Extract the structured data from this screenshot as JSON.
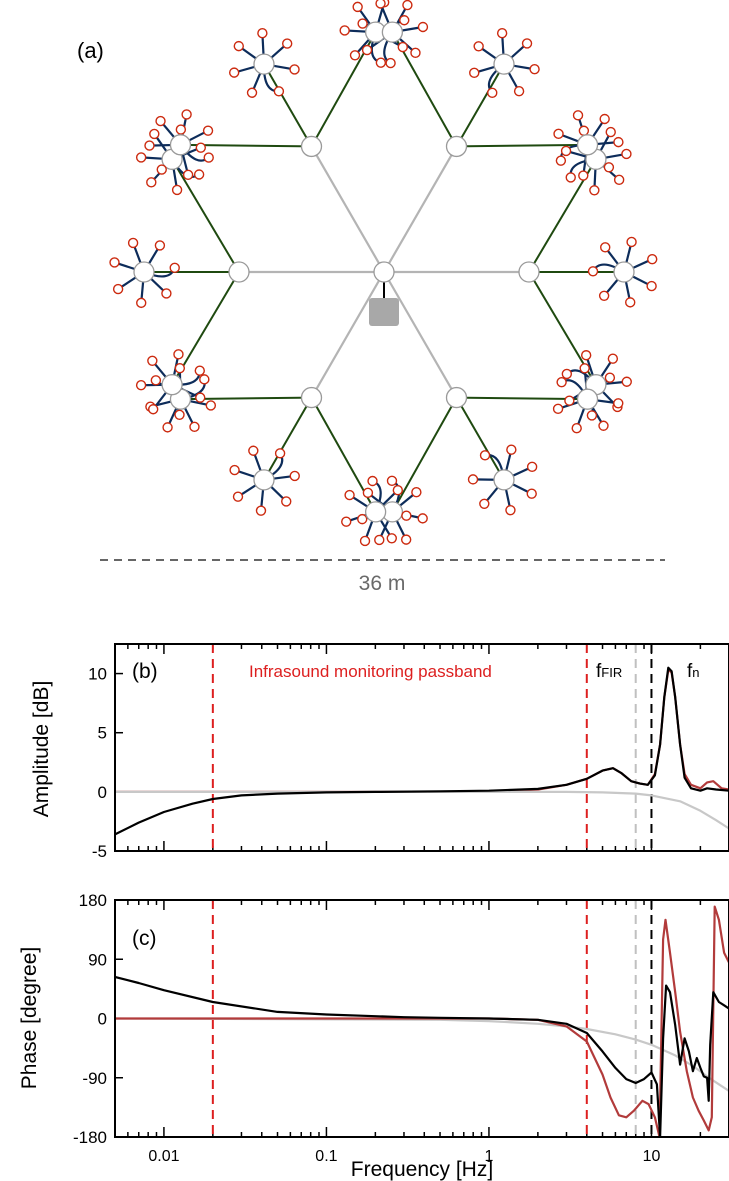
{
  "panel_a": {
    "label": "(a)",
    "scale_label": "36 m",
    "colors": {
      "center_hub": "#ffffff",
      "hub_stroke": "#9a9a9a",
      "main_arms": "#b4b4b4",
      "secondary_links": "#1f4a10",
      "sensor_arms": "#0d2c5a",
      "inlet_ports": "#cc2a0f",
      "digitizer_box": "#a8a8a8"
    }
  },
  "chart_data": [
    {
      "type": "line",
      "panel_label": "(b)",
      "ylabel": "Amplitude [dB]",
      "xscale": "log",
      "xlim": [
        0.005,
        30
      ],
      "ylim": [
        -5,
        12.5
      ],
      "yticks": [
        -5,
        0,
        5,
        10
      ],
      "annotations": {
        "passband_label": "Infrasound monitoring passband",
        "fir_label_main": "f",
        "fir_label_sub": "FIR",
        "nyq_label_main": "f",
        "nyq_label_sub": "n"
      },
      "vlines": [
        {
          "x": 0.02,
          "color": "#dd1f1f",
          "style": "dashed"
        },
        {
          "x": 4,
          "color": "#dd1f1f",
          "style": "dashed"
        },
        {
          "x": 8,
          "color": "#c0c0c0",
          "style": "dashed"
        },
        {
          "x": 10,
          "color": "#000000",
          "style": "dashed"
        }
      ],
      "series": [
        {
          "color": "#b23b3b",
          "points": [
            [
              0.005,
              0
            ],
            [
              0.05,
              0
            ],
            [
              0.5,
              0
            ],
            [
              1,
              0
            ],
            [
              2,
              0.2
            ],
            [
              3,
              0.6
            ],
            [
              4,
              1.1
            ],
            [
              5,
              1.8
            ],
            [
              5.8,
              2.0
            ],
            [
              6.5,
              1.6
            ],
            [
              7.5,
              0.9
            ],
            [
              8.5,
              0.7
            ],
            [
              9.5,
              0.6
            ],
            [
              10.5,
              1.5
            ],
            [
              11.3,
              4
            ],
            [
              12,
              8
            ],
            [
              12.7,
              10.3
            ],
            [
              13.3,
              10.1
            ],
            [
              14,
              8
            ],
            [
              15,
              4
            ],
            [
              16,
              1.5
            ],
            [
              17.5,
              0.6
            ],
            [
              20,
              0.3
            ],
            [
              22,
              0.8
            ],
            [
              24,
              0.9
            ],
            [
              27,
              0.3
            ],
            [
              30,
              0.2
            ]
          ]
        },
        {
          "color": "#c8c8c8",
          "points": [
            [
              0.005,
              0
            ],
            [
              0.5,
              0
            ],
            [
              1,
              0
            ],
            [
              2,
              0
            ],
            [
              3,
              0
            ],
            [
              5,
              -0.05
            ],
            [
              8,
              -0.15
            ],
            [
              10,
              -0.3
            ],
            [
              15,
              -0.8
            ],
            [
              20,
              -1.6
            ],
            [
              25,
              -2.4
            ],
            [
              30,
              -3.1
            ]
          ]
        },
        {
          "color": "#000000",
          "points": [
            [
              0.005,
              -3.6
            ],
            [
              0.007,
              -2.6
            ],
            [
              0.01,
              -1.7
            ],
            [
              0.015,
              -1.0
            ],
            [
              0.02,
              -0.6
            ],
            [
              0.03,
              -0.3
            ],
            [
              0.05,
              -0.15
            ],
            [
              0.1,
              -0.05
            ],
            [
              0.2,
              0
            ],
            [
              0.5,
              0.05
            ],
            [
              1,
              0.1
            ],
            [
              2,
              0.25
            ],
            [
              3,
              0.6
            ],
            [
              4,
              1.1
            ],
            [
              5,
              1.8
            ],
            [
              5.8,
              2.0
            ],
            [
              6.5,
              1.6
            ],
            [
              7.5,
              0.9
            ],
            [
              8.5,
              0.7
            ],
            [
              9.5,
              0.6
            ],
            [
              10.5,
              1.4
            ],
            [
              11.3,
              4
            ],
            [
              12,
              8
            ],
            [
              12.7,
              10.5
            ],
            [
              13.3,
              10.2
            ],
            [
              14,
              8
            ],
            [
              15,
              4
            ],
            [
              16,
              1.2
            ],
            [
              17.5,
              0.3
            ],
            [
              20,
              0.1
            ],
            [
              22,
              0.3
            ],
            [
              25,
              0.2
            ],
            [
              30,
              0.1
            ]
          ]
        }
      ]
    },
    {
      "type": "line",
      "panel_label": "(c)",
      "ylabel": "Phase [degree]",
      "xlabel": "Frequency [Hz]",
      "xscale": "log",
      "xlim": [
        0.005,
        30
      ],
      "ylim": [
        -180,
        180
      ],
      "yticks": [
        -180,
        -90,
        0,
        90,
        180
      ],
      "xtick_labels": [
        "0.01",
        "0.1",
        "1",
        "10"
      ],
      "xticks": [
        0.01,
        0.1,
        1,
        10
      ],
      "vlines": [
        {
          "x": 0.02,
          "color": "#dd1f1f",
          "style": "dashed"
        },
        {
          "x": 4,
          "color": "#dd1f1f",
          "style": "dashed"
        },
        {
          "x": 8,
          "color": "#c0c0c0",
          "style": "dashed"
        },
        {
          "x": 10,
          "color": "#000000",
          "style": "dashed"
        }
      ],
      "series": [
        {
          "color": "#c8c8c8",
          "points": [
            [
              0.005,
              0
            ],
            [
              0.5,
              -2
            ],
            [
              1,
              -4
            ],
            [
              2,
              -8
            ],
            [
              3,
              -12
            ],
            [
              4,
              -16
            ],
            [
              6,
              -24
            ],
            [
              8,
              -32
            ],
            [
              10,
              -40
            ],
            [
              14,
              -56
            ],
            [
              18,
              -72
            ],
            [
              22,
              -88
            ],
            [
              26,
              -100
            ],
            [
              30,
              -110
            ]
          ]
        },
        {
          "color": "#b23b3b",
          "points": [
            [
              0.005,
              0
            ],
            [
              1,
              0
            ],
            [
              2,
              -2
            ],
            [
              3,
              -12
            ],
            [
              4,
              -35
            ],
            [
              5,
              -85
            ],
            [
              5.6,
              -120
            ],
            [
              6.3,
              -147
            ],
            [
              7,
              -150
            ],
            [
              7.8,
              -140
            ],
            [
              8.8,
              -125
            ],
            [
              9.6,
              -130
            ],
            [
              10.5,
              -150
            ],
            [
              11.2,
              -180
            ],
            [
              11.8,
              120
            ],
            [
              12.2,
              150
            ],
            [
              13,
              100
            ],
            [
              14,
              40
            ],
            [
              15,
              -20
            ],
            [
              16.5,
              -80
            ],
            [
              18,
              -120
            ],
            [
              19.5,
              -140
            ],
            [
              21,
              -155
            ],
            [
              22.5,
              -170
            ],
            [
              23.5,
              -150
            ],
            [
              24.5,
              170
            ],
            [
              26,
              150
            ],
            [
              28,
              100
            ],
            [
              30,
              85
            ]
          ]
        },
        {
          "color": "#000000",
          "points": [
            [
              0.005,
              63
            ],
            [
              0.007,
              54
            ],
            [
              0.01,
              43
            ],
            [
              0.02,
              25
            ],
            [
              0.05,
              10
            ],
            [
              0.1,
              6
            ],
            [
              0.3,
              2
            ],
            [
              0.5,
              1
            ],
            [
              1,
              0
            ],
            [
              2,
              -2
            ],
            [
              3,
              -8
            ],
            [
              4,
              -22
            ],
            [
              5,
              -50
            ],
            [
              6,
              -75
            ],
            [
              7,
              -92
            ],
            [
              8,
              -98
            ],
            [
              9,
              -92
            ],
            [
              10,
              -82
            ],
            [
              10.8,
              -100
            ],
            [
              11.3,
              -180
            ],
            [
              11.8,
              -30
            ],
            [
              12.3,
              50
            ],
            [
              13,
              40
            ],
            [
              14,
              -10
            ],
            [
              15,
              -70
            ],
            [
              16,
              -30
            ],
            [
              17,
              -50
            ],
            [
              18,
              -80
            ],
            [
              19,
              -60
            ],
            [
              20,
              -75
            ],
            [
              21,
              -88
            ],
            [
              22,
              -90
            ],
            [
              22.5,
              -125
            ],
            [
              23,
              -40
            ],
            [
              24,
              40
            ],
            [
              26,
              25
            ],
            [
              28,
              20
            ],
            [
              30,
              15
            ]
          ]
        }
      ]
    }
  ]
}
